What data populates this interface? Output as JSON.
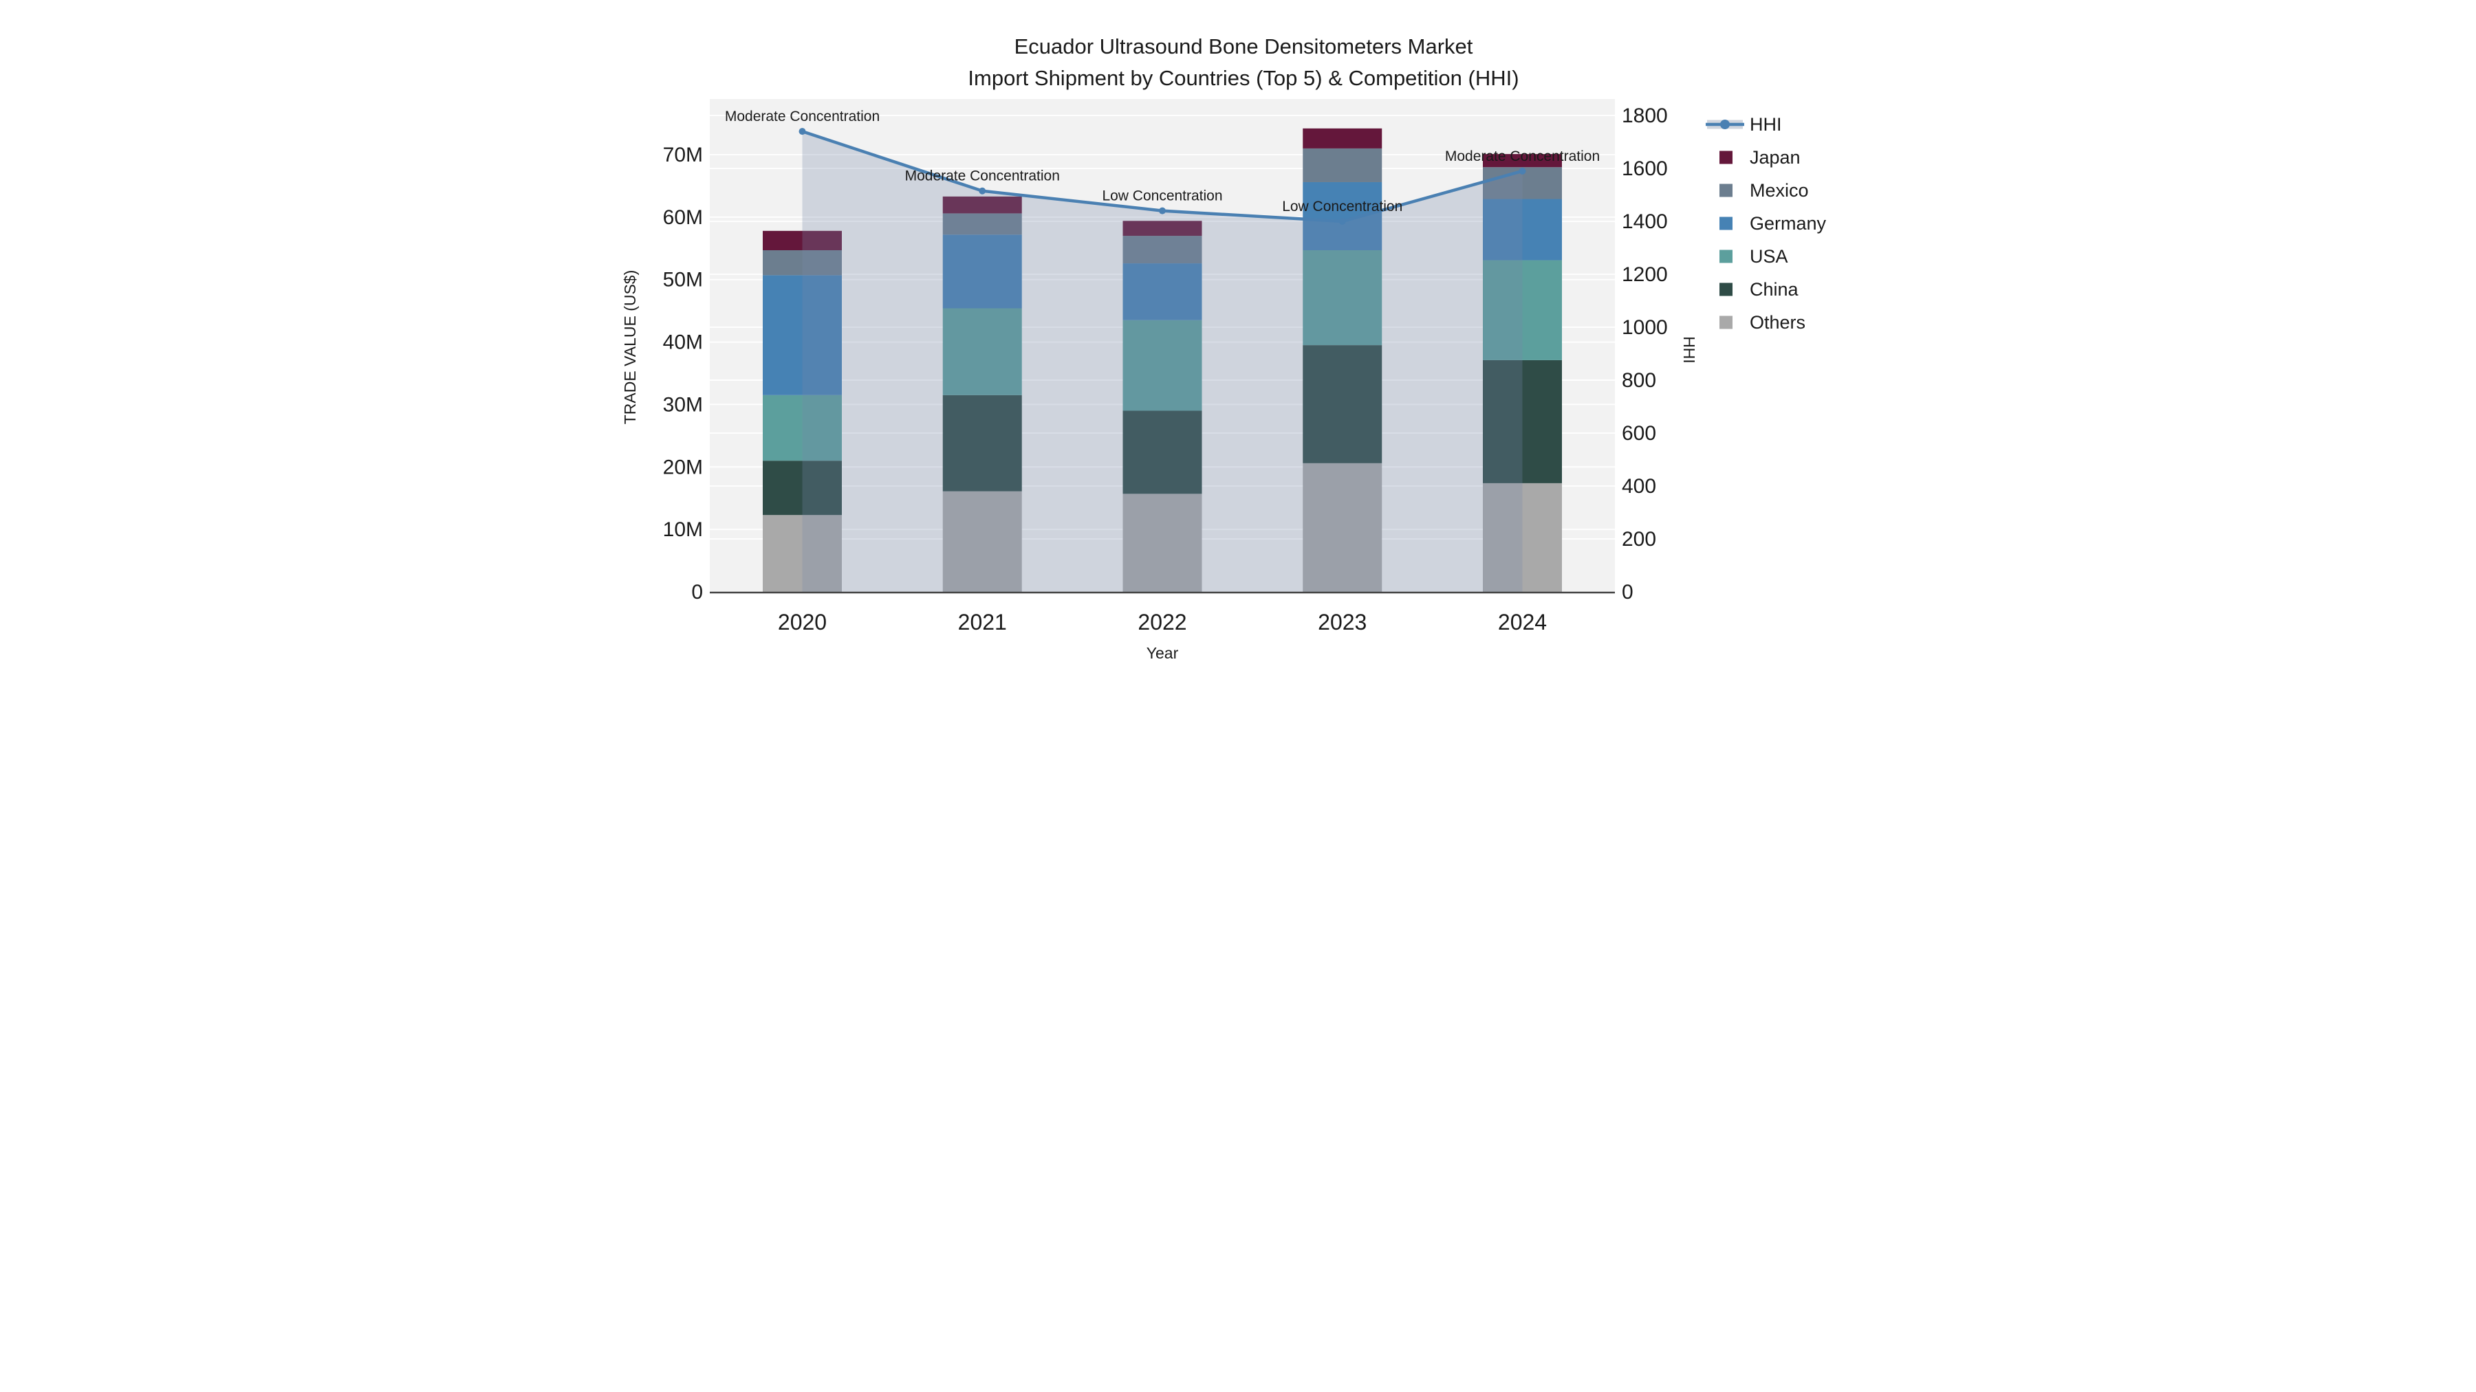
{
  "chart_data": {
    "type": "bar",
    "subtype": "stacked-bars-with-line-overlay",
    "title": "Ecuador Ultrasound Bone Densitometers Market",
    "subtitle": "Import Shipment by Countries (Top 5) & Competition (HHI)",
    "xlabel": "Year",
    "ylabel_left": "TRADE VALUE (US$)",
    "ylabel_right": "HHI",
    "categories": [
      "2020",
      "2021",
      "2022",
      "2023",
      "2024"
    ],
    "value_unit": "million US$",
    "series": [
      {
        "name": "Others",
        "color": "#A9A9A9",
        "values": [
          12.3,
          16.1,
          15.7,
          20.6,
          17.4
        ]
      },
      {
        "name": "China",
        "color": "#2F4C47",
        "values": [
          8.7,
          15.4,
          13.3,
          18.9,
          19.7
        ]
      },
      {
        "name": "USA",
        "color": "#5C9F9D",
        "values": [
          10.5,
          13.9,
          14.5,
          15.2,
          16.0
        ]
      },
      {
        "name": "Germany",
        "color": "#4682B4",
        "values": [
          19.2,
          11.8,
          9.1,
          10.9,
          9.8
        ]
      },
      {
        "name": "Mexico",
        "color": "#6C7E8F",
        "values": [
          4.0,
          3.4,
          4.4,
          5.4,
          5.1
        ]
      },
      {
        "name": "Japan",
        "color": "#64173B",
        "values": [
          3.1,
          2.7,
          2.4,
          3.2,
          2.1
        ]
      }
    ],
    "bar_totals": [
      57.8,
      63.3,
      59.4,
      74.2,
      70.1
    ],
    "hhi_line": {
      "name": "HHI",
      "color": "#4A80B2",
      "area_fill": "rgba(118,138,168,0.28)",
      "values": [
        1740,
        1515,
        1440,
        1400,
        1590
      ]
    },
    "annotations": [
      {
        "year": "2020",
        "text": "Moderate Concentration"
      },
      {
        "year": "2021",
        "text": "Moderate Concentration"
      },
      {
        "year": "2022",
        "text": "Low Concentration"
      },
      {
        "year": "2023",
        "text": "Low Concentration"
      },
      {
        "year": "2024",
        "text": "Moderate Concentration"
      }
    ],
    "left_axis": {
      "range": [
        0,
        70
      ],
      "tick_step": 10,
      "ticks": [
        "0",
        "10M",
        "20M",
        "30M",
        "40M",
        "50M",
        "60M",
        "70M"
      ]
    },
    "right_axis": {
      "range": [
        0,
        1800
      ],
      "tick_step": 200,
      "ticks": [
        "0",
        "200",
        "400",
        "600",
        "800",
        "1000",
        "1200",
        "1400",
        "1600",
        "1800"
      ]
    },
    "legend": {
      "position": "right",
      "items": [
        {
          "label": "HHI",
          "swatch": "line-marker",
          "color": "#4A80B2"
        },
        {
          "label": "Japan",
          "swatch": "square",
          "color": "#64173B"
        },
        {
          "label": "Mexico",
          "swatch": "square",
          "color": "#6C7E8F"
        },
        {
          "label": "Germany",
          "swatch": "square",
          "color": "#4682B4"
        },
        {
          "label": "USA",
          "swatch": "square",
          "color": "#5C9F9D"
        },
        {
          "label": "China",
          "swatch": "square",
          "color": "#2F4C47"
        },
        {
          "label": "Others",
          "swatch": "square",
          "color": "#A9A9A9"
        }
      ]
    },
    "colors": {
      "plot_bg": "#F2F2F2",
      "page_bg": "#FFFFFF",
      "grid": "rgba(255,255,255,0.9)",
      "axis_line": "#444444",
      "text": "#1A1A1A",
      "legend_area_band": "#D0D5DE"
    },
    "grid_on": true
  }
}
